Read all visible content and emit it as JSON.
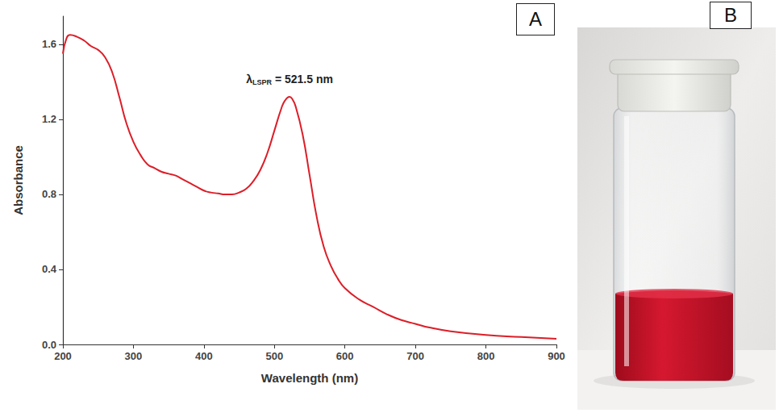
{
  "chart_data": {
    "type": "line",
    "panel_label": "A",
    "xlabel": "Wavelength (nm)",
    "ylabel": "Absorbance",
    "annotation": {
      "symbol": "λ",
      "subscript": "LSPR",
      "text": " = 521.5 nm",
      "x": 521.5
    },
    "x": [
      200,
      205,
      210,
      220,
      230,
      240,
      250,
      260,
      270,
      280,
      290,
      300,
      310,
      320,
      330,
      340,
      350,
      360,
      370,
      380,
      390,
      400,
      410,
      420,
      430,
      440,
      450,
      460,
      470,
      480,
      490,
      500,
      510,
      515,
      521.5,
      525,
      530,
      540,
      550,
      560,
      570,
      580,
      590,
      600,
      620,
      640,
      660,
      680,
      700,
      720,
      750,
      800,
      850,
      900
    ],
    "values": [
      1.55,
      1.63,
      1.65,
      1.64,
      1.62,
      1.59,
      1.57,
      1.53,
      1.45,
      1.32,
      1.18,
      1.08,
      1.01,
      0.96,
      0.94,
      0.92,
      0.91,
      0.9,
      0.88,
      0.86,
      0.84,
      0.82,
      0.81,
      0.805,
      0.8,
      0.8,
      0.81,
      0.83,
      0.87,
      0.93,
      1.02,
      1.14,
      1.26,
      1.3,
      1.32,
      1.31,
      1.27,
      1.12,
      0.9,
      0.68,
      0.52,
      0.42,
      0.35,
      0.3,
      0.24,
      0.2,
      0.16,
      0.13,
      0.11,
      0.09,
      0.07,
      0.05,
      0.04,
      0.03
    ],
    "color": "#dc1e28",
    "marker": "none",
    "line_style": "solid",
    "xlim": [
      200,
      900
    ],
    "xticks": [
      200,
      300,
      400,
      500,
      600,
      700,
      800,
      900
    ],
    "ylim": [
      0,
      1.75
    ],
    "yticks": [
      {
        "value": 0,
        "label": "0.0"
      },
      {
        "value": 0.4,
        "label": "0.4"
      },
      {
        "value": 0.8,
        "label": "0.8"
      },
      {
        "value": 1.2,
        "label": "1.2"
      },
      {
        "value": 1.6,
        "label": "1.6"
      }
    ],
    "grid": false
  },
  "photo": {
    "panel_label": "B"
  }
}
